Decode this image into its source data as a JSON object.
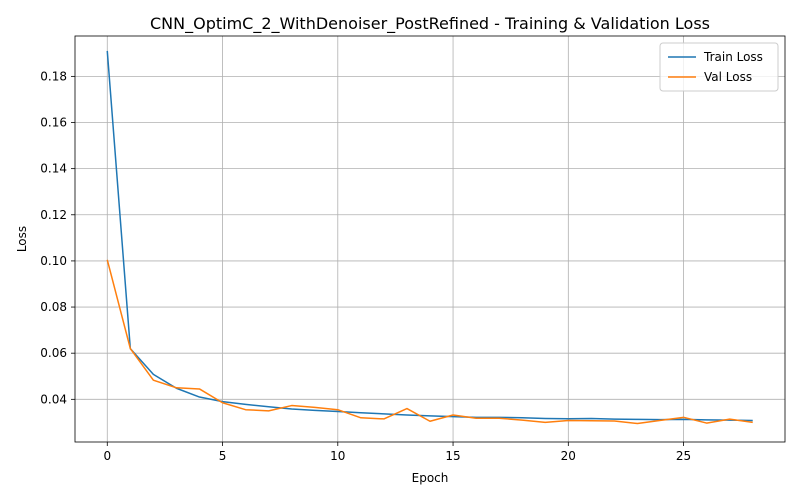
{
  "chart_data": {
    "type": "line",
    "title": "CNN_OptimC_2_WithDenoiser_PostRefined - Training & Validation Loss",
    "xlabel": "Epoch",
    "ylabel": "Loss",
    "xlim": [
      -1.4,
      29.4
    ],
    "ylim": [
      0.0215,
      0.1975
    ],
    "xticks": [
      0,
      5,
      10,
      15,
      20,
      25
    ],
    "yticks": [
      0.04,
      0.06,
      0.08,
      0.1,
      0.12,
      0.14,
      0.16,
      0.18
    ],
    "ytick_labels": [
      "0.04",
      "0.06",
      "0.08",
      "0.10",
      "0.12",
      "0.14",
      "0.16",
      "0.18"
    ],
    "grid": true,
    "legend_position": "top-right",
    "x": [
      0,
      1,
      2,
      3,
      4,
      5,
      6,
      7,
      8,
      9,
      10,
      11,
      12,
      13,
      14,
      15,
      16,
      17,
      18,
      19,
      20,
      21,
      22,
      23,
      24,
      25,
      26,
      27,
      28
    ],
    "series": [
      {
        "name": "Train Loss",
        "color": "#1f77b4",
        "values": [
          0.191,
          0.062,
          0.0508,
          0.0448,
          0.041,
          0.039,
          0.0378,
          0.0368,
          0.0358,
          0.0352,
          0.0347,
          0.0342,
          0.0337,
          0.0332,
          0.0328,
          0.0325,
          0.0322,
          0.0322,
          0.032,
          0.0317,
          0.0316,
          0.0317,
          0.0314,
          0.0313,
          0.0312,
          0.0313,
          0.0311,
          0.031,
          0.0308
        ]
      },
      {
        "name": "Val Loss",
        "color": "#ff7f0e",
        "values": [
          0.1005,
          0.062,
          0.0483,
          0.045,
          0.0445,
          0.0385,
          0.0355,
          0.035,
          0.0373,
          0.0365,
          0.0355,
          0.032,
          0.0315,
          0.036,
          0.0305,
          0.0332,
          0.0318,
          0.0318,
          0.031,
          0.03,
          0.0308,
          0.0307,
          0.0306,
          0.0295,
          0.0309,
          0.0322,
          0.0297,
          0.0314,
          0.03
        ]
      }
    ]
  }
}
